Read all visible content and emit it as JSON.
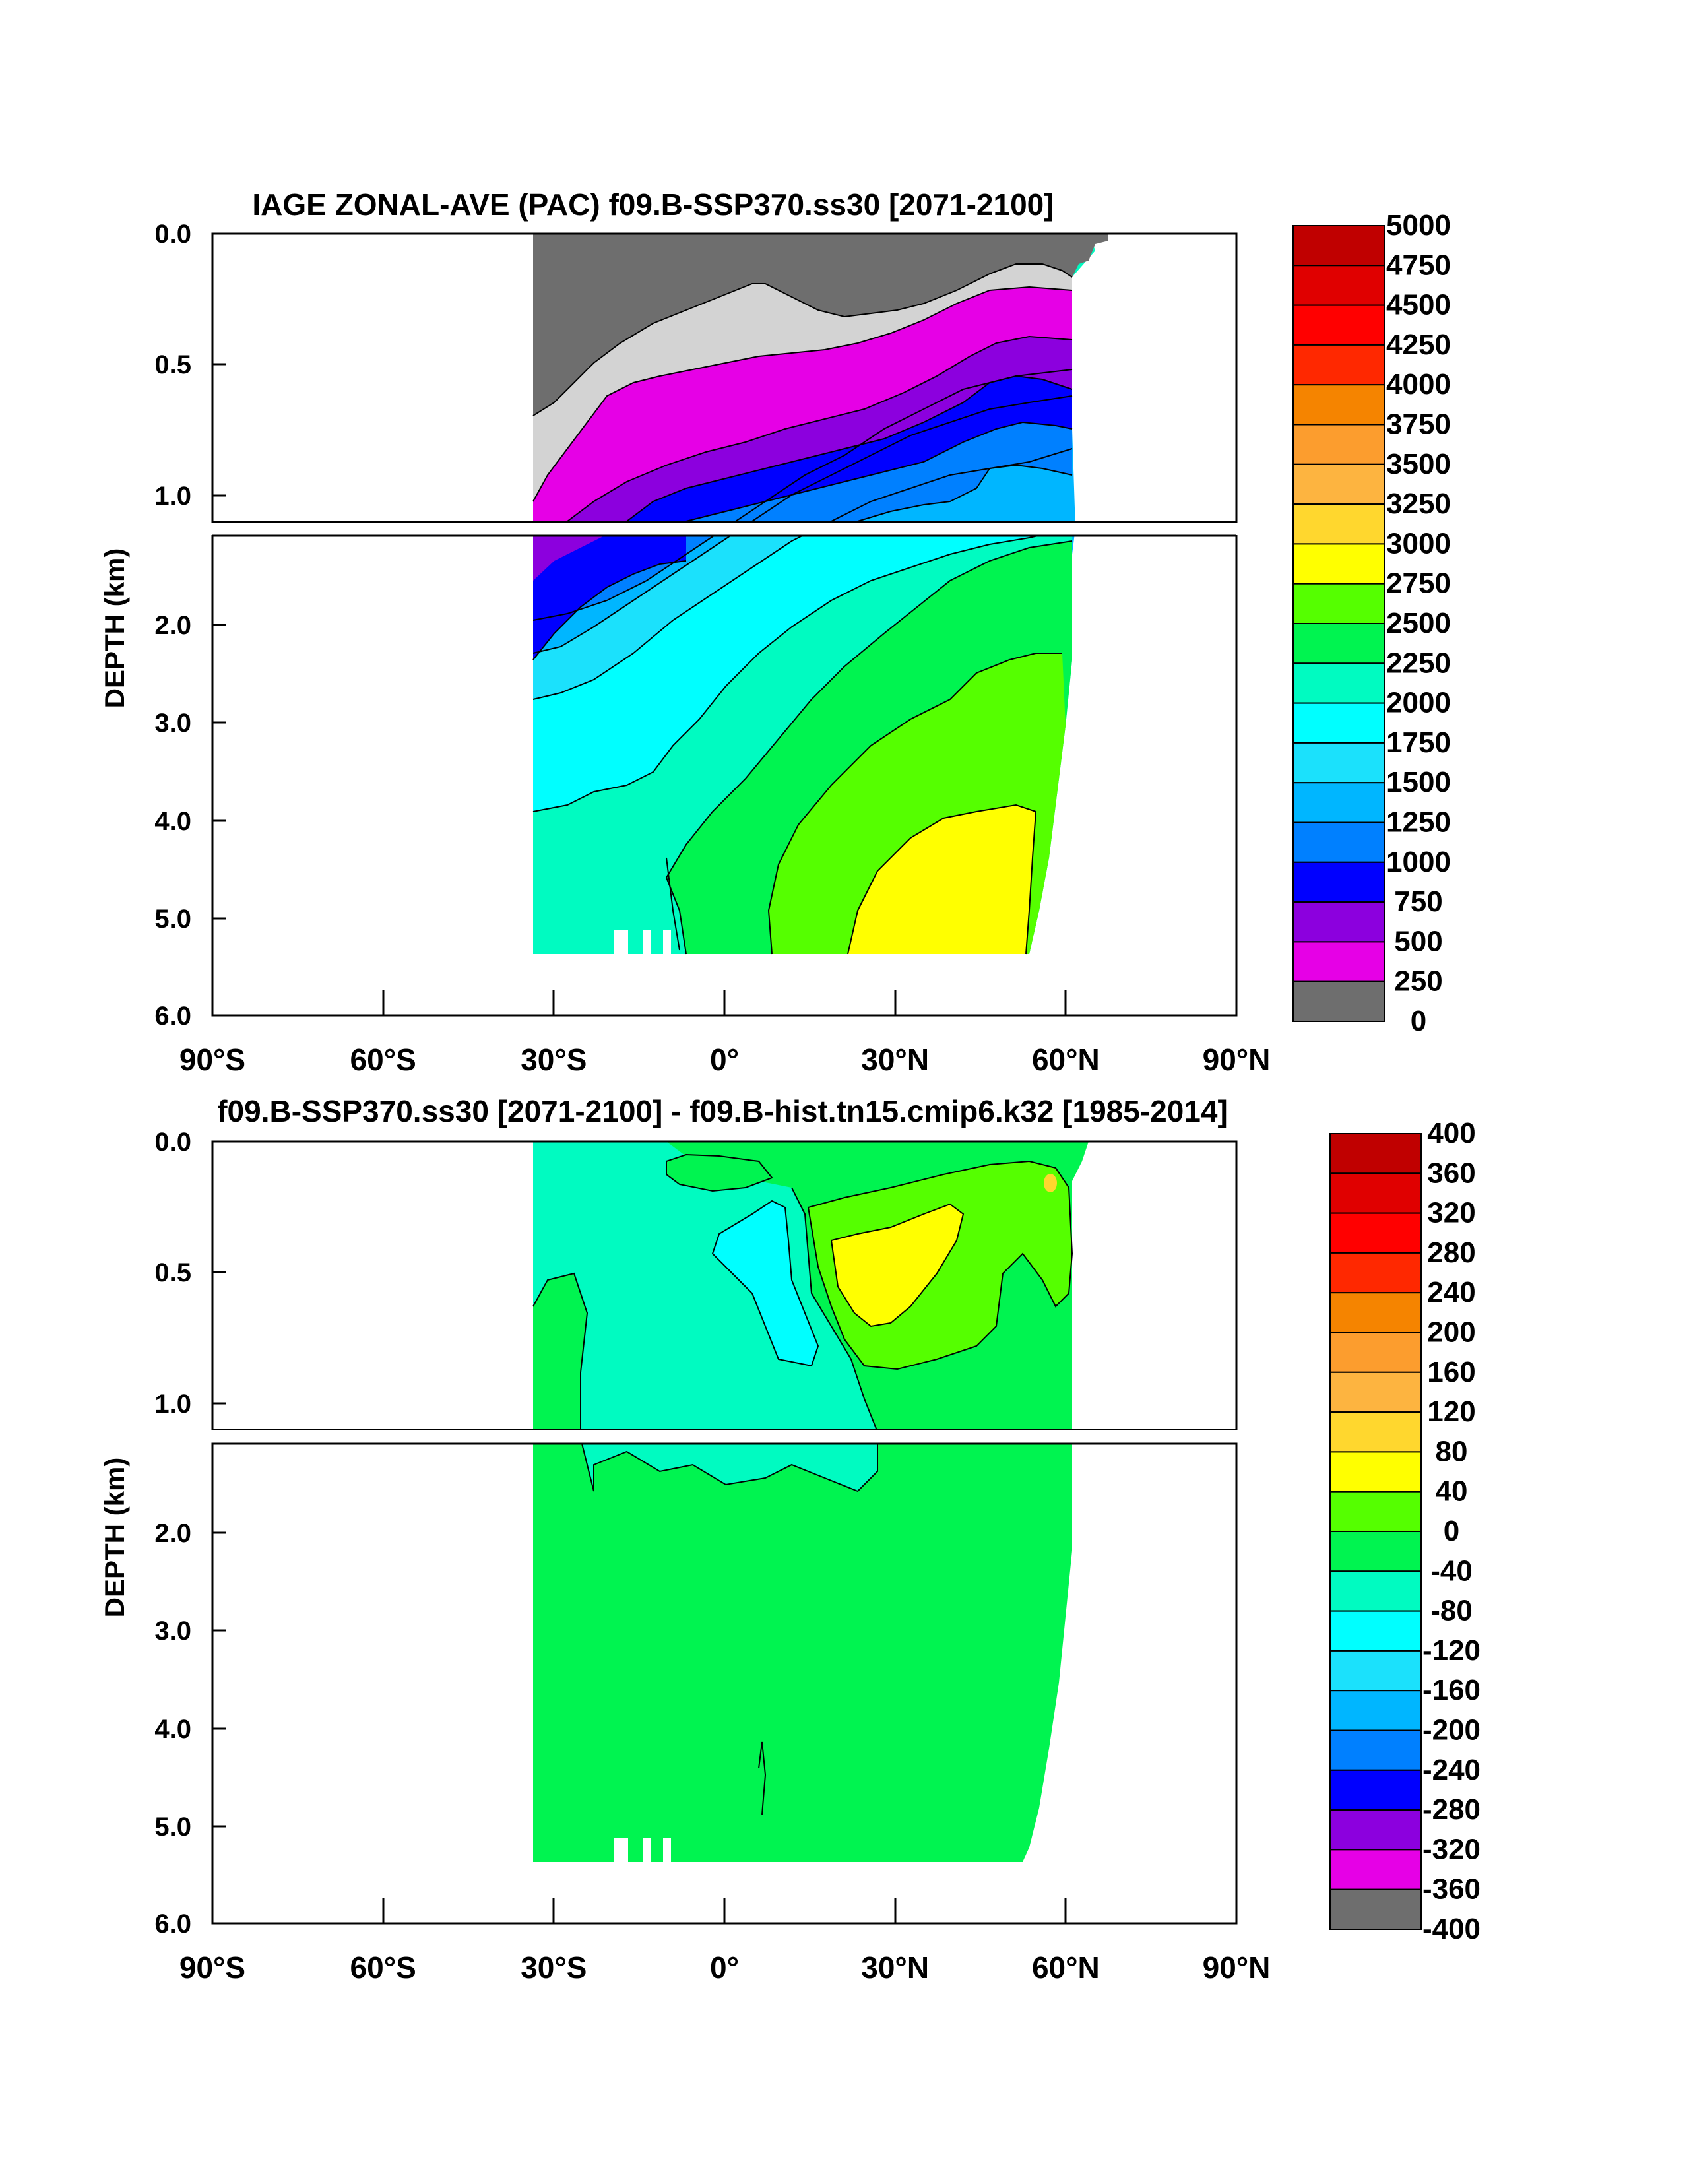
{
  "chart_data": [
    {
      "type": "heatmap",
      "title": "IAGE ZONAL-AVE (PAC) f09.B-SSP370.ss30 [2071-2100]",
      "ylabel": "DEPTH (km)",
      "xlabel": "",
      "x_ticks": [
        "90°S",
        "60°S",
        "30°S",
        "0°",
        "30°N",
        "60°N",
        "90°N"
      ],
      "y_ticks_upper": [
        "0.0",
        "0.5",
        "1.0"
      ],
      "y_ticks_lower": [
        "2.0",
        "3.0",
        "4.0",
        "5.0",
        "6.0"
      ],
      "xlim": [
        -90,
        90
      ],
      "ylim_upper": [
        0.0,
        1.1
      ],
      "ylim_lower": [
        1.1,
        6.0
      ],
      "levels": [
        "5000",
        "4750",
        "4500",
        "4250",
        "4000",
        "3750",
        "3500",
        "3250",
        "3000",
        "2750",
        "2500",
        "2250",
        "2000",
        "1750",
        "1500",
        "1250",
        "1000",
        "750",
        "500",
        "250",
        "0"
      ],
      "colors": [
        "#c00000",
        "#e00000",
        "#ff0000",
        "#ff2800",
        "#f58400",
        "#fc9d2e",
        "#fdb440",
        "#ffd72e",
        "#ffff00",
        "#55ff00",
        "#00f450",
        "#00fbc1",
        "#00ffff",
        "#1be1fc",
        "#00b6ff",
        "#0080ff",
        "#0000ff",
        "#8c00de",
        "#e600e6",
        "#d3d3d3",
        "#6e6e6e"
      ],
      "data_extent": {
        "lat_min": -34,
        "lat_max": 62,
        "depth_max": 5.37
      },
      "max_region_lat": [
        22,
        53
      ],
      "max_region_depth": [
        3.8,
        5.37
      ]
    },
    {
      "type": "heatmap",
      "title": "f09.B-SSP370.ss30 [2071-2100] - f09.B-hist.tn15.cmip6.k32 [1985-2014]",
      "ylabel": "DEPTH (km)",
      "xlabel": "",
      "x_ticks": [
        "90°S",
        "60°S",
        "30°S",
        "0°",
        "30°N",
        "60°N",
        "90°N"
      ],
      "y_ticks_upper": [
        "0.0",
        "0.5",
        "1.0"
      ],
      "y_ticks_lower": [
        "2.0",
        "3.0",
        "4.0",
        "5.0",
        "6.0"
      ],
      "xlim": [
        -90,
        90
      ],
      "ylim_upper": [
        0.0,
        1.1
      ],
      "ylim_lower": [
        1.1,
        6.0
      ],
      "levels": [
        "400",
        "360",
        "320",
        "280",
        "240",
        "200",
        "160",
        "120",
        "80",
        "40",
        "0",
        "-40",
        "-80",
        "-120",
        "-160",
        "-200",
        "-240",
        "-280",
        "-320",
        "-360",
        "-400"
      ],
      "colors": [
        "#c00000",
        "#e00000",
        "#ff0000",
        "#ff2800",
        "#f58400",
        "#fc9d2e",
        "#fdb440",
        "#ffd72e",
        "#ffff00",
        "#55ff00",
        "#00f450",
        "#00fbc1",
        "#00ffff",
        "#1be1fc",
        "#00b6ff",
        "#0080ff",
        "#0000ff",
        "#8c00de",
        "#e600e6",
        "#d3d3d3",
        "#6e6e6e"
      ],
      "dominant_value_range": [
        0,
        40
      ]
    }
  ]
}
